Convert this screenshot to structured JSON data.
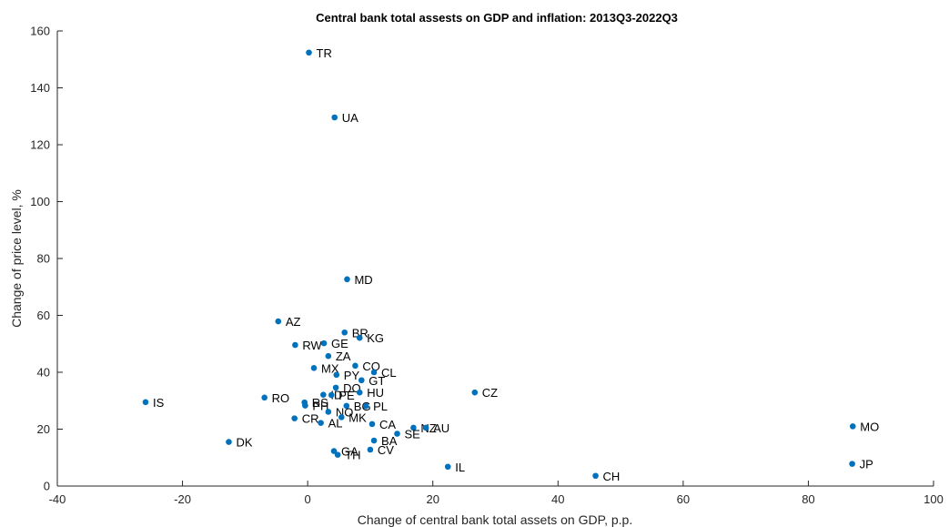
{
  "chart_data": {
    "type": "scatter",
    "title": "Central bank total assests on GDP and inflation: 2013Q3-2022Q3",
    "xlabel": "Change of central bank total assets on GDP, p.p.",
    "ylabel": "Change of price level, %",
    "xlim": [
      -40,
      100
    ],
    "ylim": [
      0,
      160
    ],
    "xticks": [
      -40,
      -20,
      0,
      20,
      40,
      60,
      80,
      100
    ],
    "yticks": [
      0,
      20,
      40,
      60,
      80,
      100,
      120,
      140,
      160
    ],
    "xtick_labels": [
      "-40",
      "-20",
      "0",
      "20",
      "40",
      "60",
      "80",
      "100"
    ],
    "ytick_labels": [
      "0",
      "20",
      "40",
      "60",
      "80",
      "100",
      "120",
      "140",
      "160"
    ],
    "grid": false,
    "marker_color": "#0072BD",
    "points": [
      {
        "label": "TR",
        "x": 0.2,
        "y": 152.4
      },
      {
        "label": "UA",
        "x": 4.3,
        "y": 129.6
      },
      {
        "label": "MD",
        "x": 6.3,
        "y": 72.7
      },
      {
        "label": "AZ",
        "x": -4.7,
        "y": 57.9
      },
      {
        "label": "BR",
        "x": 5.9,
        "y": 54.0
      },
      {
        "label": "KG",
        "x": 8.3,
        "y": 52.1
      },
      {
        "label": "RW",
        "x": -2.0,
        "y": 49.6
      },
      {
        "label": "GE",
        "x": 2.6,
        "y": 50.2
      },
      {
        "label": "ZA",
        "x": 3.3,
        "y": 45.7
      },
      {
        "label": "MX",
        "x": 1.0,
        "y": 41.5
      },
      {
        "label": "CO",
        "x": 7.6,
        "y": 42.3
      },
      {
        "label": "CL",
        "x": 10.6,
        "y": 40.0
      },
      {
        "label": "PY",
        "x": 4.6,
        "y": 39.1
      },
      {
        "label": "GT",
        "x": 8.6,
        "y": 37.2
      },
      {
        "label": "DO",
        "x": 4.5,
        "y": 34.6
      },
      {
        "label": "HU",
        "x": 8.3,
        "y": 32.9
      },
      {
        "label": "ID",
        "x": 2.5,
        "y": 32.1
      },
      {
        "label": "PE",
        "x": 3.8,
        "y": 32.0
      },
      {
        "label": "CZ",
        "x": 26.7,
        "y": 32.9
      },
      {
        "label": "RO",
        "x": -6.9,
        "y": 31.1
      },
      {
        "label": "IS",
        "x": -25.9,
        "y": 29.5
      },
      {
        "label": "RS",
        "x": -0.5,
        "y": 29.4
      },
      {
        "label": "PH",
        "x": -0.4,
        "y": 28.3
      },
      {
        "label": "BG",
        "x": 6.2,
        "y": 28.2
      },
      {
        "label": "PL",
        "x": 9.3,
        "y": 28.1
      },
      {
        "label": "NO",
        "x": 3.3,
        "y": 26.1
      },
      {
        "label": "CR",
        "x": -2.1,
        "y": 23.8
      },
      {
        "label": "MK",
        "x": 5.4,
        "y": 24.2
      },
      {
        "label": "AL",
        "x": 2.1,
        "y": 22.2
      },
      {
        "label": "CA",
        "x": 10.3,
        "y": 21.8
      },
      {
        "label": "NZ",
        "x": 16.9,
        "y": 20.5
      },
      {
        "label": "AU",
        "x": 18.9,
        "y": 20.5
      },
      {
        "label": "SE",
        "x": 14.3,
        "y": 18.4
      },
      {
        "label": "MO",
        "x": 87.1,
        "y": 21.0
      },
      {
        "label": "DK",
        "x": -12.6,
        "y": 15.5
      },
      {
        "label": "BA",
        "x": 10.6,
        "y": 16.0
      },
      {
        "label": "CV",
        "x": 10.0,
        "y": 12.8
      },
      {
        "label": "GA",
        "x": 4.2,
        "y": 12.3
      },
      {
        "label": "TH",
        "x": 4.8,
        "y": 11.0
      },
      {
        "label": "IL",
        "x": 22.4,
        "y": 6.8
      },
      {
        "label": "CH",
        "x": 46.0,
        "y": 3.6
      },
      {
        "label": "JP",
        "x": 87.0,
        "y": 7.8
      }
    ]
  }
}
